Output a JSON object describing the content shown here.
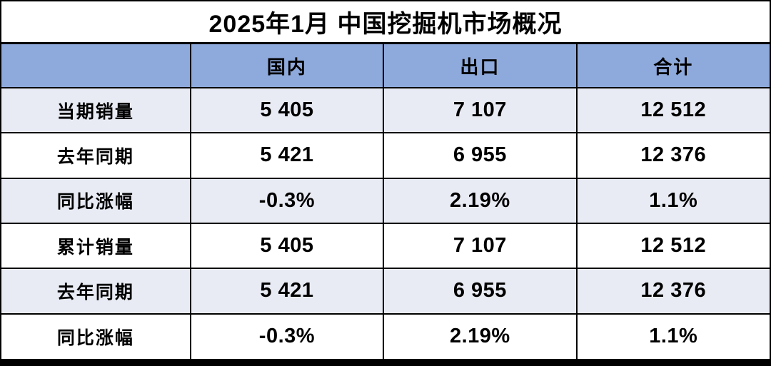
{
  "title": "2025年1月 中国挖掘机市场概况",
  "table": {
    "columns": [
      "",
      "国内",
      "出口",
      "合计"
    ],
    "rows": [
      {
        "label": "当期销量",
        "values": [
          "5 405",
          "7 107",
          "12 512"
        ]
      },
      {
        "label": "去年同期",
        "values": [
          "5 421",
          "6 955",
          "12 376"
        ]
      },
      {
        "label": "同比涨幅",
        "values": [
          "-0.3%",
          "2.19%",
          "1.1%"
        ]
      },
      {
        "label": "累计销量",
        "values": [
          "5 405",
          "7 107",
          "12 512"
        ]
      },
      {
        "label": "去年同期",
        "values": [
          "5 421",
          "6 955",
          "12 376"
        ]
      },
      {
        "label": "同比涨幅",
        "values": [
          "-0.3%",
          "2.19%",
          "1.1%"
        ]
      }
    ]
  },
  "colors": {
    "header_bg": "#8EA9DB",
    "row_alt_bg": "#E9EBF4",
    "row_bg": "#FFFFFF",
    "border_color": "#000000",
    "text_color": "#000000"
  },
  "chart_data": {
    "type": "table",
    "title": "2025年1月 中国挖掘机市场概况",
    "columns": [
      "",
      "国内",
      "出口",
      "合计"
    ],
    "rows": [
      [
        "当期销量",
        5405,
        7107,
        12512
      ],
      [
        "去年同期",
        5421,
        6955,
        12376
      ],
      [
        "同比涨幅",
        "-0.3%",
        "2.19%",
        "1.1%"
      ],
      [
        "累计销量",
        5405,
        7107,
        12512
      ],
      [
        "去年同期",
        5421,
        6955,
        12376
      ],
      [
        "同比涨幅",
        "-0.3%",
        "2.19%",
        "1.1%"
      ]
    ]
  }
}
